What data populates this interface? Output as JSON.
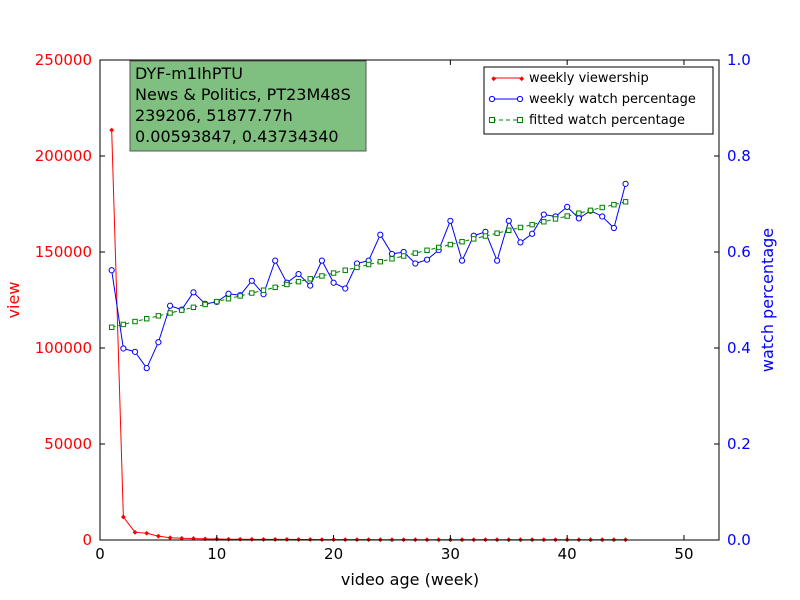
{
  "chart_data": {
    "type": "line",
    "xlabel": "video age (week)",
    "ylabel_left": "view",
    "ylabel_right": "watch percentage",
    "xlim": [
      0,
      53
    ],
    "ylim_left": [
      0,
      250000
    ],
    "ylim_right": [
      0,
      1.0
    ],
    "x_ticks": [
      0,
      10,
      20,
      30,
      40,
      50
    ],
    "y_left_ticks": [
      0,
      50000,
      100000,
      150000,
      200000,
      250000
    ],
    "y_right_ticks": [
      0.0,
      0.2,
      0.4,
      0.6,
      0.8,
      1.0
    ],
    "x_tick_labels": [
      "0",
      "10",
      "20",
      "30",
      "40",
      "50"
    ],
    "y_left_tick_labels": [
      "0",
      "50000",
      "100000",
      "150000",
      "200000",
      "250000"
    ],
    "y_right_tick_labels": [
      "0.0",
      "0.2",
      "0.4",
      "0.6",
      "0.8",
      "1.0"
    ],
    "grid": false,
    "legend_position": "top-right",
    "annotation": {
      "lines": [
        "DYF-m1IhPTU",
        "News & Politics, PT23M48S",
        "239206, 51877.77h",
        "0.00593847, 0.43734340"
      ]
    },
    "series": [
      {
        "name": "weekly viewership",
        "axis": "left",
        "color": "#ff0000",
        "marker": "diamond",
        "x": [
          1,
          2,
          3,
          4,
          5,
          6,
          7,
          8,
          9,
          10,
          11,
          12,
          13,
          14,
          15,
          16,
          17,
          18,
          19,
          20,
          21,
          22,
          23,
          24,
          25,
          26,
          27,
          28,
          29,
          30,
          31,
          32,
          33,
          34,
          35,
          36,
          37,
          38,
          39,
          40,
          41,
          42,
          43,
          44,
          45
        ],
        "values": [
          213500,
          12000,
          4000,
          3500,
          2000,
          1200,
          900,
          800,
          600,
          500,
          400,
          400,
          350,
          300,
          300,
          300,
          250,
          250,
          200,
          200,
          200,
          200,
          200,
          150,
          150,
          150,
          150,
          150,
          150,
          150,
          150,
          150,
          150,
          150,
          150,
          150,
          150,
          150,
          150,
          150,
          150,
          150,
          150,
          150,
          150
        ]
      },
      {
        "name": "weekly watch percentage",
        "axis": "right",
        "color": "#0000ff",
        "marker": "circle",
        "x": [
          1,
          2,
          3,
          4,
          5,
          6,
          7,
          8,
          9,
          10,
          11,
          12,
          13,
          14,
          15,
          16,
          17,
          18,
          19,
          20,
          21,
          22,
          23,
          24,
          25,
          26,
          27,
          28,
          29,
          30,
          31,
          32,
          33,
          34,
          35,
          36,
          37,
          38,
          39,
          40,
          41,
          42,
          43,
          44,
          45
        ],
        "values": [
          0.562,
          0.399,
          0.392,
          0.358,
          0.412,
          0.488,
          0.48,
          0.516,
          0.492,
          0.496,
          0.513,
          0.51,
          0.54,
          0.512,
          0.582,
          0.536,
          0.554,
          0.53,
          0.582,
          0.536,
          0.524,
          0.576,
          0.582,
          0.636,
          0.596,
          0.6,
          0.576,
          0.584,
          0.604,
          0.665,
          0.582,
          0.634,
          0.642,
          0.582,
          0.665,
          0.62,
          0.638,
          0.678,
          0.674,
          0.694,
          0.67,
          0.686,
          0.674,
          0.65,
          0.742
        ]
      },
      {
        "name": "fitted watch percentage",
        "axis": "right",
        "color": "#008000",
        "marker": "square",
        "x": [
          1,
          2,
          3,
          4,
          5,
          6,
          7,
          8,
          9,
          10,
          11,
          12,
          13,
          14,
          15,
          16,
          17,
          18,
          19,
          20,
          21,
          22,
          23,
          24,
          25,
          26,
          27,
          28,
          29,
          30,
          31,
          32,
          33,
          34,
          35,
          36,
          37,
          38,
          39,
          40,
          41,
          42,
          43,
          44,
          45
        ],
        "values": [
          0.4432,
          0.4491,
          0.4551,
          0.461,
          0.467,
          0.4729,
          0.4788,
          0.4848,
          0.4907,
          0.4967,
          0.5026,
          0.5085,
          0.5145,
          0.5204,
          0.5264,
          0.5323,
          0.5382,
          0.5442,
          0.5501,
          0.5561,
          0.562,
          0.5679,
          0.5739,
          0.5798,
          0.5858,
          0.5917,
          0.5976,
          0.6036,
          0.6095,
          0.6155,
          0.6214,
          0.6273,
          0.6333,
          0.6392,
          0.6452,
          0.6511,
          0.657,
          0.663,
          0.6689,
          0.6749,
          0.6808,
          0.6867,
          0.6927,
          0.6986,
          0.7046
        ]
      }
    ]
  }
}
